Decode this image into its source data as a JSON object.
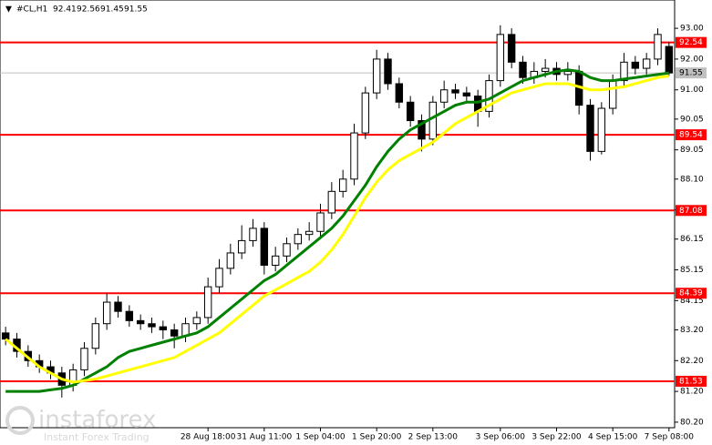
{
  "chart_data": {
    "type": "candlestick",
    "symbol": "#CL,H1",
    "open": [
      83.1,
      82.9,
      82.5,
      82.2,
      82.0,
      81.8,
      81.4,
      81.9,
      82.6,
      83.4,
      84.1,
      83.8,
      83.5,
      83.4,
      83.3,
      83.2,
      83.0,
      83.4,
      83.6,
      84.6,
      85.2,
      85.7,
      86.1,
      86.5,
      85.3,
      85.6,
      86.0,
      86.3,
      86.4,
      87.0,
      87.7,
      88.1,
      89.6,
      90.9,
      92.0,
      91.2,
      90.6,
      90.0,
      89.4,
      90.6,
      91.0,
      90.9,
      90.8,
      90.3,
      91.3,
      92.8,
      91.9,
      91.4,
      91.6,
      91.7,
      91.5,
      91.6,
      90.5,
      89.0,
      90.4,
      91.3,
      91.9,
      91.7,
      92.0,
      92.41
    ],
    "high": [
      83.3,
      83.1,
      82.7,
      82.4,
      82.2,
      82.0,
      82.1,
      82.8,
      83.6,
      84.4,
      84.3,
      84.0,
      83.7,
      83.6,
      83.5,
      83.4,
      83.6,
      83.8,
      84.9,
      85.5,
      86.0,
      86.6,
      86.8,
      86.7,
      85.9,
      86.2,
      86.5,
      86.7,
      87.3,
      88.0,
      88.4,
      89.9,
      91.1,
      92.3,
      92.2,
      91.4,
      90.8,
      90.2,
      90.8,
      91.3,
      91.2,
      91.1,
      91.0,
      91.5,
      93.1,
      93.0,
      92.1,
      91.9,
      92.0,
      91.9,
      91.9,
      91.8,
      90.7,
      90.6,
      91.5,
      92.2,
      92.1,
      92.2,
      93.0,
      92.56
    ],
    "low": [
      82.7,
      82.3,
      82.0,
      81.8,
      81.6,
      81.0,
      81.2,
      81.7,
      82.4,
      83.2,
      83.6,
      83.3,
      83.2,
      83.1,
      82.9,
      82.6,
      82.8,
      83.2,
      83.4,
      84.4,
      85.0,
      85.5,
      85.9,
      85.0,
      85.1,
      85.4,
      85.8,
      86.1,
      86.2,
      86.8,
      87.5,
      87.9,
      89.4,
      90.7,
      91.0,
      90.4,
      89.8,
      89.0,
      89.2,
      90.4,
      90.7,
      90.6,
      89.8,
      90.1,
      91.1,
      91.7,
      91.2,
      91.2,
      91.4,
      91.3,
      91.3,
      90.2,
      88.7,
      88.9,
      90.2,
      91.1,
      91.5,
      91.5,
      91.8,
      91.45
    ],
    "close": [
      82.9,
      82.5,
      82.2,
      82.0,
      81.8,
      81.4,
      81.9,
      82.6,
      83.4,
      84.1,
      83.8,
      83.5,
      83.4,
      83.3,
      83.2,
      83.0,
      83.4,
      83.6,
      84.6,
      85.2,
      85.7,
      86.1,
      86.5,
      85.3,
      85.6,
      86.0,
      86.3,
      86.4,
      87.0,
      87.7,
      88.1,
      89.6,
      90.9,
      92.0,
      91.2,
      90.6,
      90.0,
      89.4,
      90.6,
      91.0,
      90.9,
      90.8,
      90.3,
      91.3,
      92.8,
      91.9,
      91.4,
      91.6,
      91.7,
      91.5,
      91.6,
      90.5,
      89.0,
      90.4,
      91.3,
      91.9,
      91.7,
      92.0,
      92.8,
      91.55
    ],
    "categories": [
      null,
      null,
      null,
      null,
      null,
      null,
      null,
      null,
      null,
      null,
      null,
      null,
      null,
      null,
      null,
      null,
      null,
      null,
      "28 Aug 18:00",
      null,
      null,
      null,
      null,
      "31 Aug 11:00",
      null,
      null,
      null,
      null,
      "1 Sep 04:00",
      null,
      null,
      null,
      null,
      "1 Sep 20:00",
      null,
      null,
      null,
      null,
      "2 Sep 13:00",
      null,
      null,
      null,
      null,
      null,
      "3 Sep 06:00",
      null,
      null,
      null,
      null,
      "3 Sep 22:00",
      null,
      null,
      null,
      null,
      "4 Sep 15:00",
      null,
      null,
      null,
      null,
      "7 Sep 08:00"
    ],
    "series": [
      {
        "color": "#008000",
        "values": [
          81.2,
          81.2,
          81.2,
          81.2,
          81.25,
          81.3,
          81.4,
          81.6,
          81.8,
          82.0,
          82.3,
          82.5,
          82.6,
          82.7,
          82.8,
          82.9,
          83.0,
          83.1,
          83.3,
          83.6,
          83.9,
          84.2,
          84.5,
          84.8,
          85.0,
          85.3,
          85.6,
          85.9,
          86.2,
          86.5,
          86.9,
          87.4,
          87.9,
          88.5,
          89.0,
          89.4,
          89.7,
          89.9,
          90.1,
          90.3,
          90.5,
          90.6,
          90.6,
          90.7,
          90.9,
          91.1,
          91.3,
          91.4,
          91.5,
          91.6,
          91.65,
          91.6,
          91.4,
          91.3,
          91.3,
          91.35,
          91.4,
          91.45,
          91.5,
          91.55
        ]
      },
      {
        "color": "#ffff00",
        "values": [
          82.9,
          82.6,
          82.3,
          82.0,
          81.8,
          81.6,
          81.5,
          81.55,
          81.6,
          81.7,
          81.8,
          81.9,
          82.0,
          82.1,
          82.2,
          82.3,
          82.5,
          82.7,
          82.9,
          83.1,
          83.4,
          83.7,
          84.0,
          84.3,
          84.5,
          84.7,
          84.9,
          85.1,
          85.4,
          85.8,
          86.3,
          86.9,
          87.5,
          88.0,
          88.4,
          88.7,
          88.9,
          89.1,
          89.3,
          89.6,
          89.9,
          90.1,
          90.3,
          90.5,
          90.7,
          90.9,
          91.0,
          91.1,
          91.2,
          91.2,
          91.2,
          91.1,
          91.0,
          91.0,
          91.05,
          91.1,
          91.2,
          91.3,
          91.4,
          91.45
        ]
      }
    ],
    "levels": [
      92.54,
      89.54,
      87.08,
      84.39,
      81.53
    ],
    "level_color": "#ff0000",
    "ylim": [
      80.02,
      93.92
    ],
    "yticks": [
      {
        "value": 93.0,
        "label": "93.00"
      },
      {
        "value": 92.0,
        "label": "92.00"
      },
      {
        "value": 91.0,
        "label": "91.00"
      },
      {
        "value": 90.05,
        "label": "90.05"
      },
      {
        "value": 89.05,
        "label": "89.05"
      },
      {
        "value": 88.1,
        "label": "88.10"
      },
      {
        "value": 87.1,
        "label": "87.10"
      },
      {
        "value": 86.15,
        "label": "86.15"
      },
      {
        "value": 85.15,
        "label": "85.15"
      },
      {
        "value": 84.15,
        "label": "84.15"
      },
      {
        "value": 83.2,
        "label": "83.20"
      },
      {
        "value": 82.2,
        "label": "82.20"
      },
      {
        "value": 81.2,
        "label": "81.20"
      },
      {
        "value": 80.2,
        "label": "80.20"
      }
    ]
  },
  "watermark": {
    "brand": "instaforex",
    "tagline": "Instant Forex Trading"
  }
}
